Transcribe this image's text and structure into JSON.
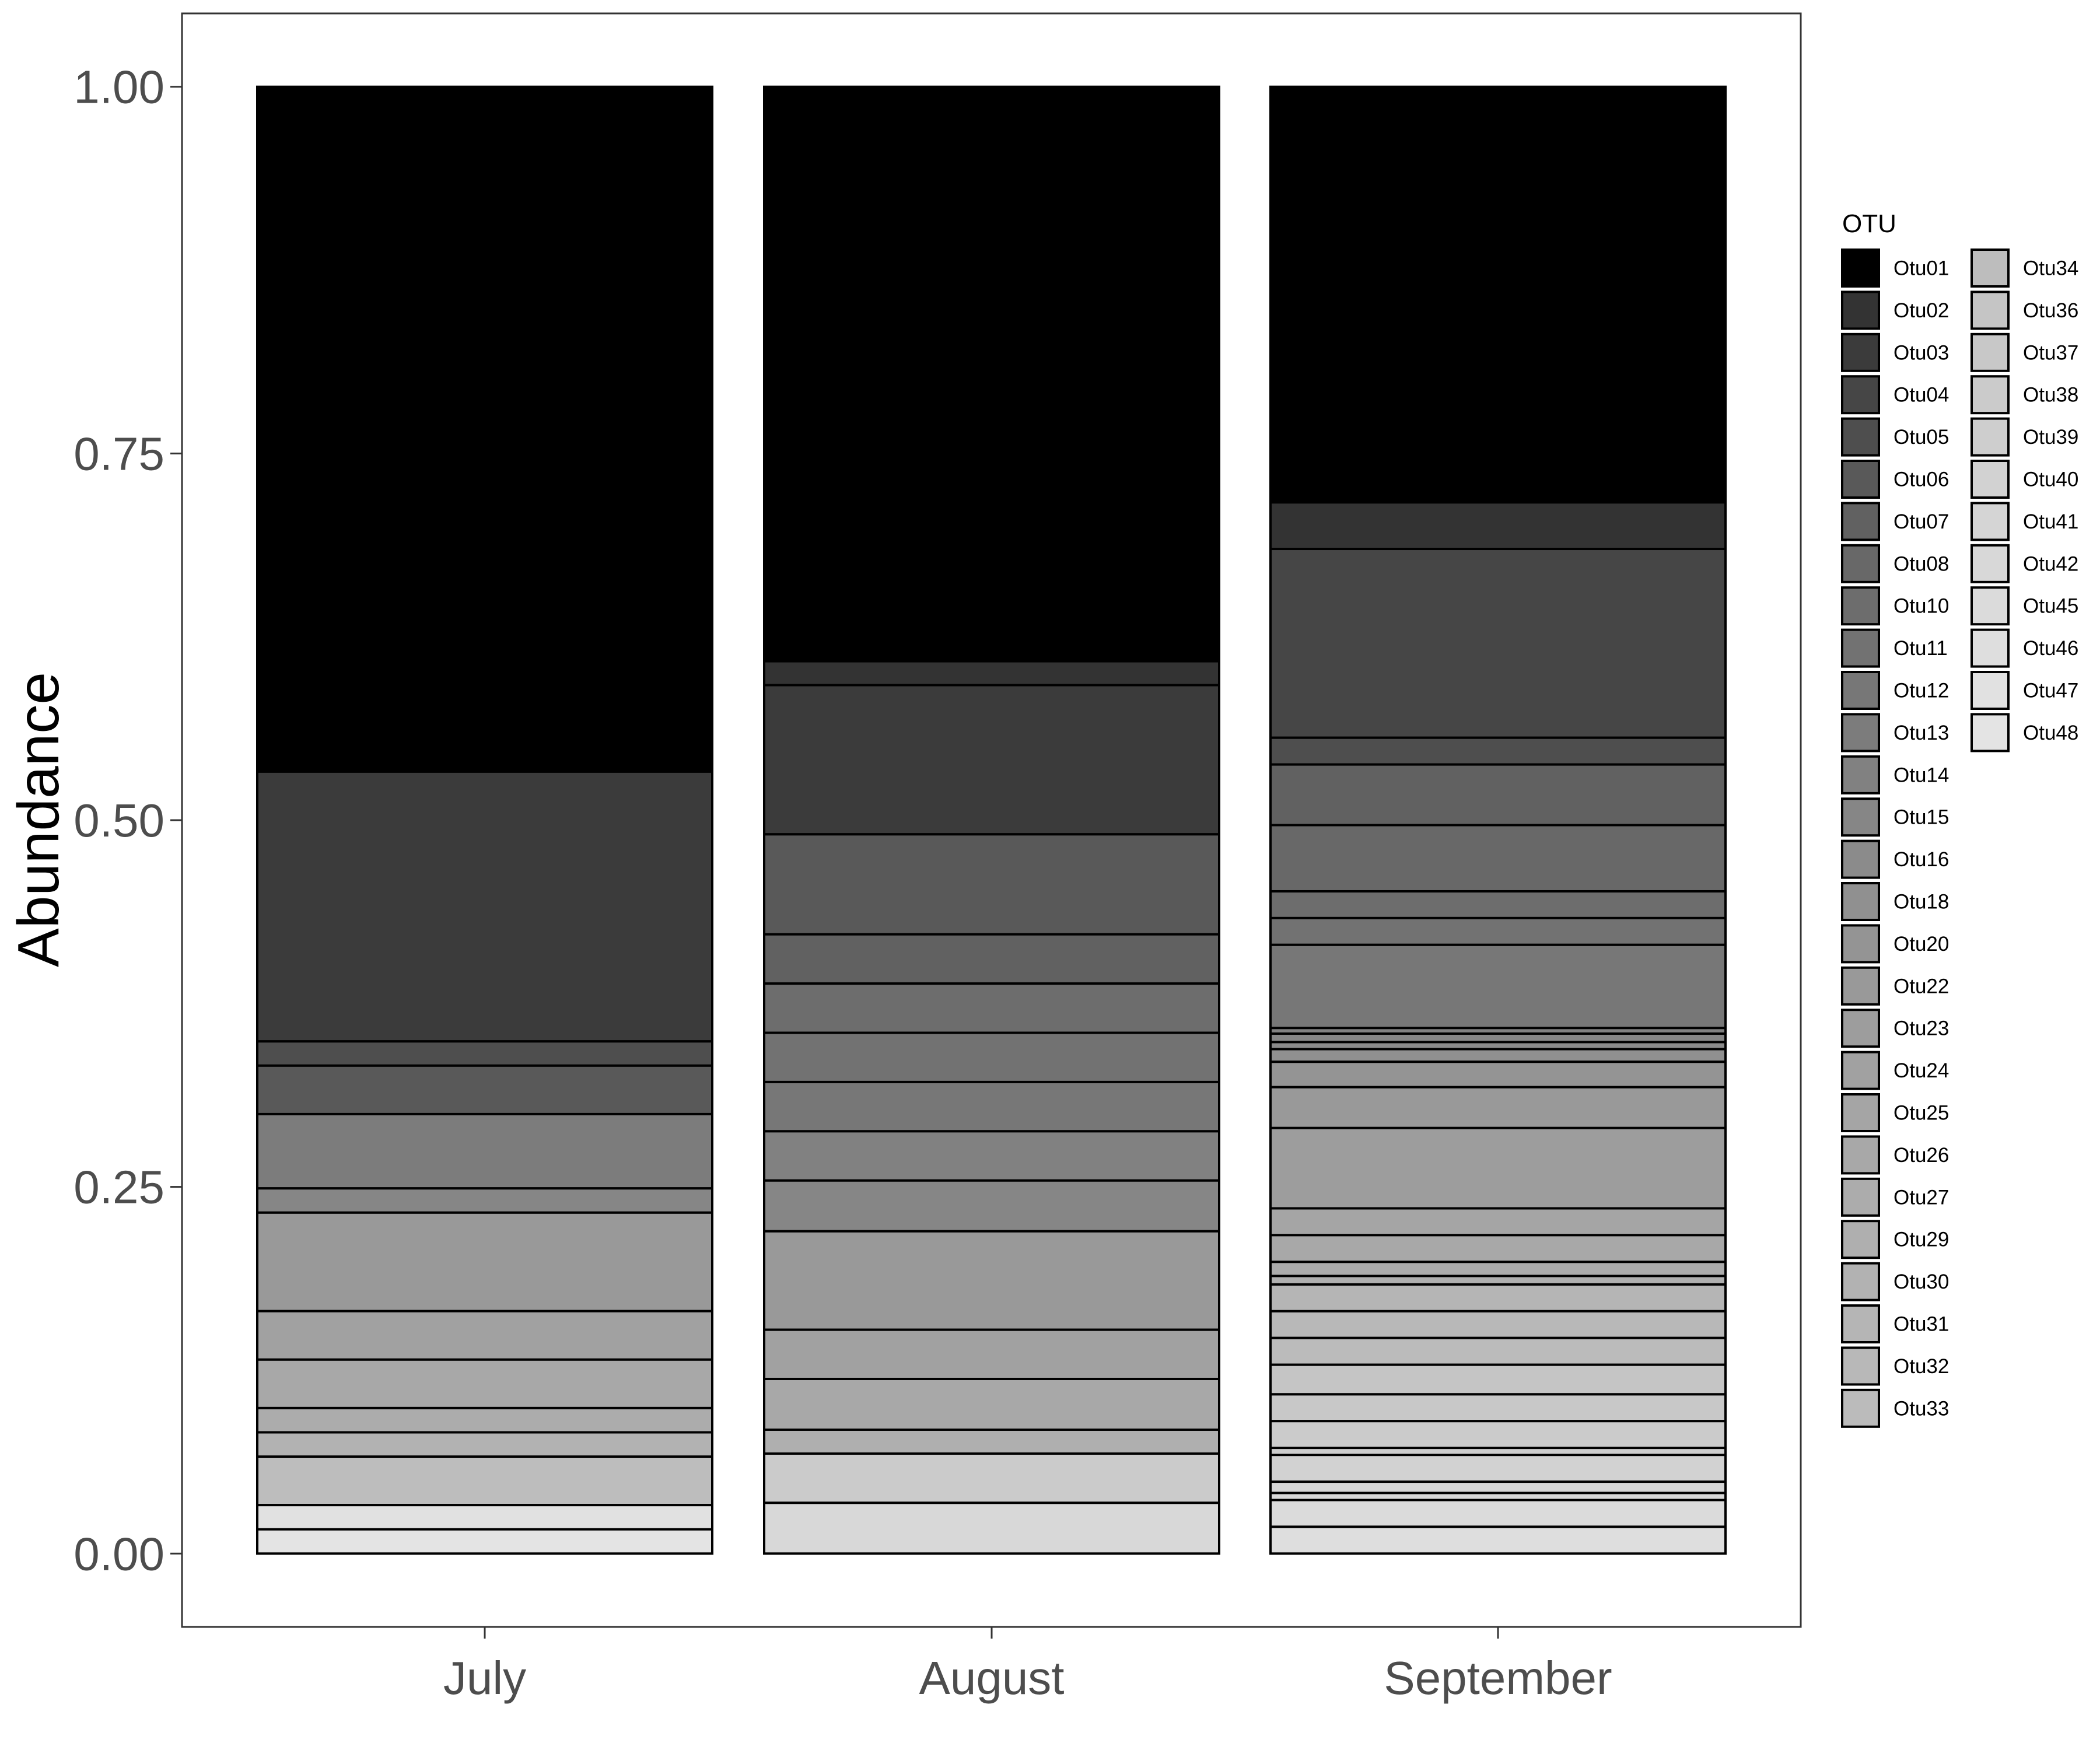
{
  "chart_data": {
    "type": "bar",
    "stacked": true,
    "normalized": true,
    "ylabel": "Abundance",
    "xlabel": "",
    "ylim": [
      -0.05,
      1.05
    ],
    "yticks": [
      0.0,
      0.25,
      0.5,
      0.75,
      1.0
    ],
    "ytick_labels": [
      "0.00",
      "0.25",
      "0.50",
      "0.75",
      "1.00"
    ],
    "grid": false,
    "legend": {
      "title": "OTU",
      "placement": "right",
      "columns": 2
    },
    "categories": [
      "July",
      "August",
      "September"
    ],
    "series": [
      {
        "name": "Otu01",
        "color": "#000000",
        "values": [
          0.452,
          0.385,
          0.295
        ]
      },
      {
        "name": "Otu02",
        "color": "#333333",
        "values": [
          0.0,
          0.016,
          0.033
        ]
      },
      {
        "name": "Otu03",
        "color": "#3b3b3b",
        "values": [
          0.178,
          0.1,
          0.0
        ]
      },
      {
        "name": "Otu04",
        "color": "#464646",
        "values": [
          0.0,
          0.0,
          0.134
        ]
      },
      {
        "name": "Otu05",
        "color": "#4e4e4e",
        "values": [
          0.016,
          0.0,
          0.019
        ]
      },
      {
        "name": "Otu06",
        "color": "#595959",
        "values": [
          0.032,
          0.067,
          0.0
        ]
      },
      {
        "name": "Otu07",
        "color": "#616161",
        "values": [
          0.0,
          0.033,
          0.043
        ]
      },
      {
        "name": "Otu08",
        "color": "#686868",
        "values": [
          0.0,
          0.0,
          0.047
        ]
      },
      {
        "name": "Otu10",
        "color": "#6d6d6d",
        "values": [
          0.0,
          0.033,
          0.019
        ]
      },
      {
        "name": "Otu11",
        "color": "#727272",
        "values": [
          0.0,
          0.033,
          0.019
        ]
      },
      {
        "name": "Otu12",
        "color": "#777777",
        "values": [
          0.0,
          0.033,
          0.059
        ]
      },
      {
        "name": "Otu13",
        "color": "#7c7c7c",
        "values": [
          0.049,
          0.0,
          0.0
        ]
      },
      {
        "name": "Otu14",
        "color": "#818181",
        "values": [
          0.0,
          0.033,
          0.004
        ]
      },
      {
        "name": "Otu15",
        "color": "#868686",
        "values": [
          0.016,
          0.034,
          0.006
        ]
      },
      {
        "name": "Otu16",
        "color": "#8b8b8b",
        "values": [
          0.0,
          0.0,
          0.005
        ]
      },
      {
        "name": "Otu18",
        "color": "#909090",
        "values": [
          0.0,
          0.0,
          0.009
        ]
      },
      {
        "name": "Otu20",
        "color": "#949494",
        "values": [
          0.0,
          0.0,
          0.018
        ]
      },
      {
        "name": "Otu22",
        "color": "#999999",
        "values": [
          0.065,
          0.066,
          0.029
        ]
      },
      {
        "name": "Otu23",
        "color": "#9d9d9d",
        "values": [
          0.0,
          0.0,
          0.057
        ]
      },
      {
        "name": "Otu24",
        "color": "#a1a1a1",
        "values": [
          0.032,
          0.033,
          0.0
        ]
      },
      {
        "name": "Otu25",
        "color": "#a5a5a5",
        "values": [
          0.0,
          0.0,
          0.019
        ]
      },
      {
        "name": "Otu26",
        "color": "#a8a8a8",
        "values": [
          0.032,
          0.034,
          0.019
        ]
      },
      {
        "name": "Otu27",
        "color": "#acacac",
        "values": [
          0.016,
          0.0,
          0.01
        ]
      },
      {
        "name": "Otu29",
        "color": "#afafaf",
        "values": [
          0.0,
          0.016,
          0.006
        ]
      },
      {
        "name": "Otu30",
        "color": "#b2b2b2",
        "values": [
          0.016,
          0.0,
          0.0
        ]
      },
      {
        "name": "Otu31",
        "color": "#b5b5b5",
        "values": [
          0.0,
          0.0,
          0.019
        ]
      },
      {
        "name": "Otu32",
        "color": "#b8b8b8",
        "values": [
          0.0,
          0.0,
          0.019
        ]
      },
      {
        "name": "Otu33",
        "color": "#bbbbbb",
        "values": [
          0.0,
          0.0,
          0.019
        ]
      },
      {
        "name": "Otu34",
        "color": "#bdbdbd",
        "values": [
          0.032,
          0.0,
          0.0
        ]
      },
      {
        "name": "Otu36",
        "color": "#c5c5c5",
        "values": [
          0.0,
          0.0,
          0.021
        ]
      },
      {
        "name": "Otu37",
        "color": "#c8c8c8",
        "values": [
          0.0,
          0.0,
          0.019
        ]
      },
      {
        "name": "Otu38",
        "color": "#cbcbcb",
        "values": [
          0.0,
          0.033,
          0.019
        ]
      },
      {
        "name": "Otu39",
        "color": "#cecece",
        "values": [
          0.0,
          0.0,
          0.005
        ]
      },
      {
        "name": "Otu40",
        "color": "#d2d2d2",
        "values": [
          0.0,
          0.0,
          0.019
        ]
      },
      {
        "name": "Otu41",
        "color": "#d5d5d5",
        "values": [
          0.0,
          0.0,
          0.008
        ]
      },
      {
        "name": "Otu42",
        "color": "#d8d8d8",
        "values": [
          0.0,
          0.034,
          0.005
        ]
      },
      {
        "name": "Otu45",
        "color": "#dbdbdb",
        "values": [
          0.0,
          0.0,
          0.019
        ]
      },
      {
        "name": "Otu46",
        "color": "#dedede",
        "values": [
          0.0,
          0.0,
          0.019
        ]
      },
      {
        "name": "Otu47",
        "color": "#e1e1e1",
        "values": [
          0.016,
          0.0,
          0.0
        ]
      },
      {
        "name": "Otu48",
        "color": "#e4e4e4",
        "values": [
          0.016,
          0.0,
          0.0
        ]
      }
    ]
  }
}
